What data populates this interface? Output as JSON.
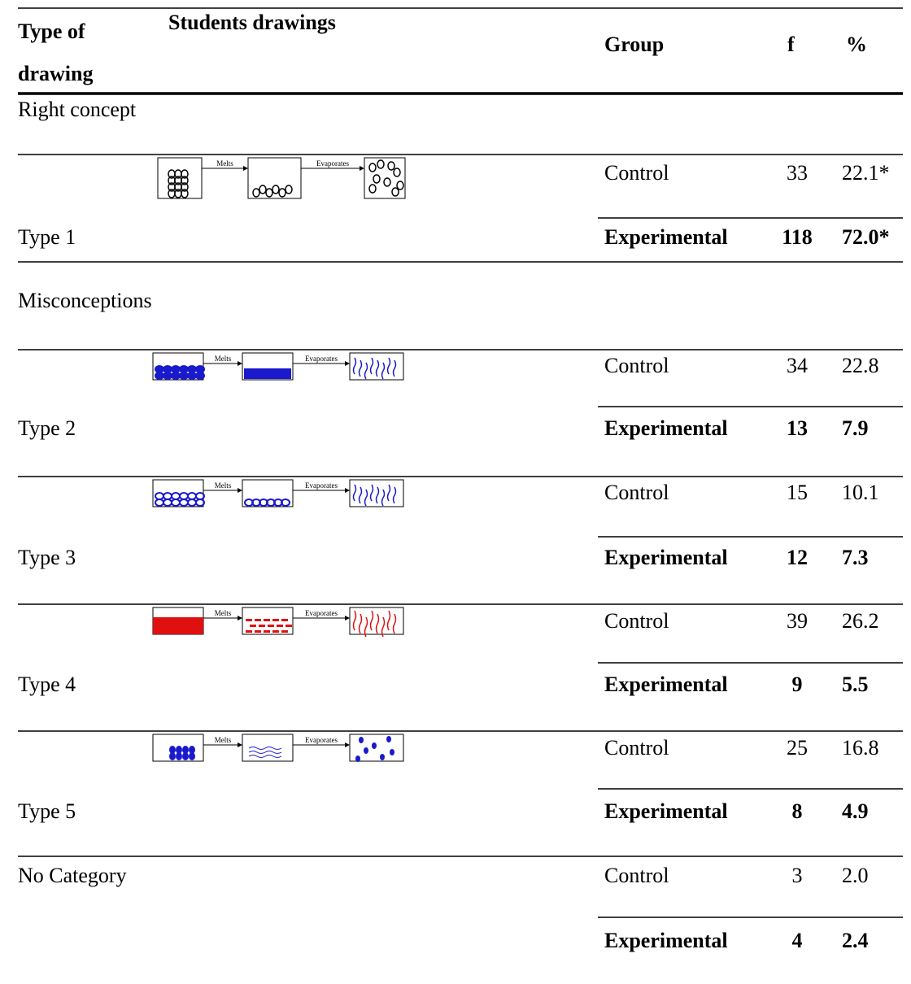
{
  "header": {
    "type_of_drawing": "Type of drawing",
    "students_drawings": "Students drawings",
    "group": "Group",
    "f": "f",
    "percent": "%"
  },
  "section_labels": [
    "Right concept",
    "Misconceptions"
  ],
  "rows": [
    {
      "type": "Type 1",
      "drawing": {
        "step1": "Melts",
        "step2": "Evaporates"
      },
      "groups": [
        {
          "group": "Control",
          "f": "33",
          "percent": "22.1*"
        },
        {
          "group": "Experimental",
          "f": "118",
          "percent": "72.0*"
        }
      ]
    },
    {
      "type": "Type 2",
      "drawing": {
        "step1": "Melts",
        "step2": "Evaporates"
      },
      "groups": [
        {
          "group": "Control",
          "f": "34",
          "percent": "22.8"
        },
        {
          "group": "Experimental",
          "f": "13",
          "percent": "7.9"
        }
      ]
    },
    {
      "type": "Type 3",
      "drawing": {
        "step1": "Melts",
        "step2": "Evaporates"
      },
      "groups": [
        {
          "group": "Control",
          "f": "15",
          "percent": "10.1"
        },
        {
          "group": "Experimental",
          "f": "12",
          "percent": "7.3"
        }
      ]
    },
    {
      "type": "Type 4",
      "drawing": {
        "step1": "Melts",
        "step2": "Evaporates"
      },
      "groups": [
        {
          "group": "Control",
          "f": "39",
          "percent": "26.2"
        },
        {
          "group": "Experimental",
          "f": "9",
          "percent": "5.5"
        }
      ]
    },
    {
      "type": "Type 5",
      "drawing": {
        "step1": "Melts",
        "step2": "Evaporates"
      },
      "groups": [
        {
          "group": "Control",
          "f": "25",
          "percent": "16.8"
        },
        {
          "group": "Experimental",
          "f": "8",
          "percent": "4.9"
        }
      ]
    },
    {
      "type": "No Category",
      "groups": [
        {
          "group": "Control",
          "f": "3",
          "percent": "2.0"
        },
        {
          "group": "Experimental",
          "f": "4",
          "percent": "2.4"
        }
      ]
    }
  ]
}
